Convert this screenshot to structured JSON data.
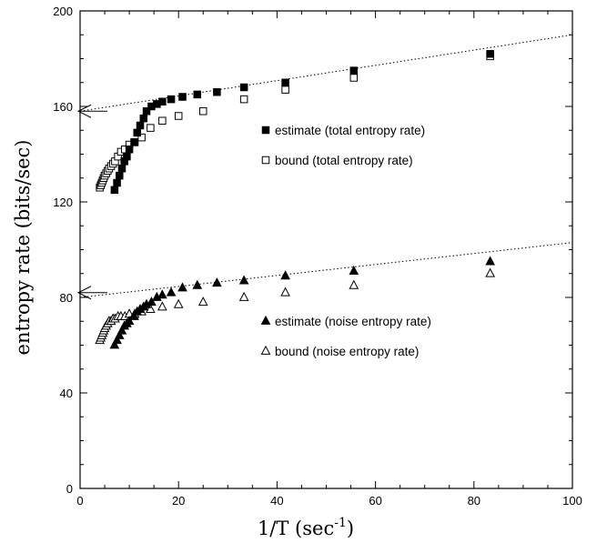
{
  "chart_data": {
    "type": "scatter",
    "xlabel": "1/T (sec",
    "xlabel_sup": "-1",
    "xlabel_end": ")",
    "ylabel": "entropy rate (bits/sec)",
    "xlim": [
      0,
      100
    ],
    "ylim": [
      0,
      200
    ],
    "xticks": [
      0,
      20,
      40,
      60,
      80,
      100
    ],
    "yticks": [
      0,
      40,
      80,
      120,
      160,
      200
    ],
    "grid": false,
    "legend_placement": "inside-right",
    "series": [
      {
        "name": "estimate (total entropy rate)",
        "marker": "filled-square",
        "color": "#000000",
        "x": [
          7.0,
          7.5,
          8.0,
          8.5,
          9.0,
          9.5,
          10.0,
          11.0,
          11.6,
          12.2,
          12.9,
          13.5,
          14.5,
          15.6,
          16.7,
          18.5,
          20.8,
          23.8,
          27.8,
          33.3,
          41.7,
          55.6,
          83.3
        ],
        "values": [
          125,
          128,
          131,
          134,
          137,
          139,
          142,
          145,
          149,
          152,
          155,
          158,
          160,
          161,
          162,
          163,
          164,
          165,
          166,
          168,
          170,
          175,
          182
        ]
      },
      {
        "name": "bound (total entropy rate)",
        "marker": "open-square",
        "color": "#000000",
        "x": [
          4.0,
          4.2,
          4.4,
          4.6,
          4.8,
          5.0,
          5.3,
          5.6,
          5.9,
          6.3,
          6.7,
          7.1,
          7.7,
          8.3,
          9.1,
          10.0,
          11.1,
          12.5,
          14.3,
          16.7,
          20.0,
          25.0,
          33.3,
          41.7,
          55.6,
          83.3
        ],
        "values": [
          126,
          127,
          128,
          129,
          130,
          131,
          132,
          133,
          134,
          135,
          136,
          137,
          139,
          141,
          142,
          144,
          145,
          147,
          151,
          154,
          156,
          158,
          163,
          167,
          172,
          181
        ]
      },
      {
        "name": "estimate (noise entropy rate)",
        "marker": "filled-triangle",
        "color": "#000000",
        "x": [
          7.0,
          7.5,
          8.0,
          8.5,
          9.0,
          9.5,
          10.0,
          11.0,
          11.6,
          12.2,
          12.9,
          13.5,
          14.5,
          15.6,
          16.7,
          18.5,
          20.8,
          23.8,
          27.8,
          33.3,
          41.7,
          55.6,
          83.3
        ],
        "values": [
          60,
          62,
          64,
          66,
          68,
          69,
          70,
          72,
          74,
          75,
          76,
          77,
          78,
          80,
          81,
          82,
          84,
          85,
          86,
          87,
          89,
          91,
          95
        ]
      },
      {
        "name": "bound (noise entropy rate)",
        "marker": "open-triangle",
        "color": "#000000",
        "x": [
          4.0,
          4.2,
          4.4,
          4.6,
          4.8,
          5.0,
          5.3,
          5.6,
          5.9,
          6.3,
          6.7,
          7.1,
          7.7,
          8.3,
          9.1,
          10.0,
          11.1,
          12.5,
          14.3,
          16.7,
          20.0,
          25.0,
          33.3,
          41.7,
          55.6,
          83.3
        ],
        "values": [
          62,
          63,
          64,
          65,
          66,
          67,
          68,
          69,
          70,
          70,
          71,
          71,
          72,
          72,
          72,
          73,
          73,
          74,
          75,
          76,
          77,
          78,
          80,
          82,
          85,
          90
        ]
      }
    ],
    "fit_lines": [
      {
        "x": [
          0,
          100
        ],
        "values": [
          158,
          190
        ]
      },
      {
        "x": [
          0,
          100
        ],
        "values": [
          80,
          103
        ]
      }
    ],
    "arrow_markers": [
      158,
      82
    ]
  }
}
